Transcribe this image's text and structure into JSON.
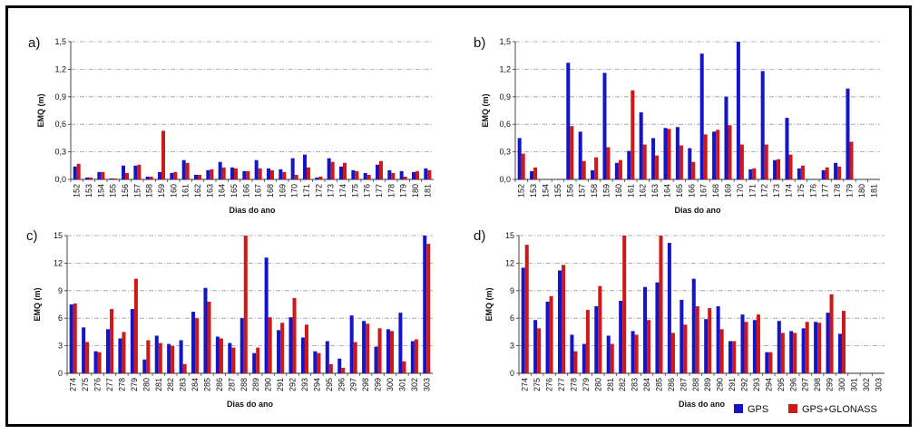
{
  "colors": {
    "gps": "#1414c8",
    "glonass": "#d01818"
  },
  "legend": {
    "gps": "GPS",
    "gps_glonass": "GPS+GLONASS"
  },
  "chart_data": [
    {
      "type": "bar",
      "panel_label": "a)",
      "xlabel": "Dias do ano",
      "ylabel": "EMQ (m)",
      "ylim": [
        0,
        1.5
      ],
      "yticks": [
        "0,0",
        "0,3",
        "0,6",
        "0,9",
        "1,2",
        "1,5"
      ],
      "grid": true,
      "categories": [
        "152",
        "153",
        "154",
        "155",
        "156",
        "157",
        "158",
        "159",
        "160",
        "161",
        "162",
        "163",
        "164",
        "165",
        "166",
        "167",
        "168",
        "169",
        "170",
        "171",
        "172",
        "173",
        "174",
        "175",
        "176",
        "177",
        "178",
        "179",
        "180",
        "181"
      ],
      "series": [
        {
          "name": "GPS",
          "values": [
            0.14,
            0.02,
            0.08,
            0.01,
            0.15,
            0.15,
            0.03,
            0.08,
            0.07,
            0.21,
            0.05,
            0.1,
            0.19,
            0.13,
            0.09,
            0.21,
            0.12,
            0.11,
            0.23,
            0.27,
            0.02,
            0.23,
            0.14,
            0.1,
            0.07,
            0.16,
            0.1,
            0.09,
            0.08,
            0.12
          ]
        },
        {
          "name": "GPS+GLONASS",
          "values": [
            0.17,
            0.02,
            0.08,
            0.01,
            0.07,
            0.16,
            0.03,
            0.53,
            0.08,
            0.18,
            0.05,
            0.11,
            0.13,
            0.12,
            0.09,
            0.12,
            0.1,
            0.08,
            0.05,
            0.13,
            0.03,
            0.19,
            0.18,
            0.09,
            0.05,
            0.2,
            0.07,
            0.03,
            0.09,
            0.1
          ]
        }
      ]
    },
    {
      "type": "bar",
      "panel_label": "b)",
      "xlabel": "Dias do ano",
      "ylabel": "EMQ (m)",
      "ylim": [
        0,
        1.5
      ],
      "yticks": [
        "0,0",
        "0,3",
        "0,6",
        "0,9",
        "1,2",
        "1,5"
      ],
      "grid": true,
      "categories": [
        "152",
        "153",
        "154",
        "155",
        "156",
        "157",
        "158",
        "159",
        "160",
        "161",
        "162",
        "163",
        "164",
        "165",
        "166",
        "167",
        "168",
        "169",
        "170",
        "171",
        "172",
        "173",
        "174",
        "175",
        "176",
        "177",
        "178",
        "179",
        "180",
        "181"
      ],
      "series": [
        {
          "name": "GPS",
          "values": [
            0.45,
            0.09,
            0,
            0,
            1.27,
            0.52,
            0.1,
            1.16,
            0.18,
            0.31,
            0.73,
            0.45,
            0.56,
            0.57,
            0.34,
            1.37,
            0.52,
            0.9,
            1.5,
            0.11,
            1.18,
            0.21,
            0.67,
            0.12,
            0,
            0.1,
            0.18,
            0.99,
            0,
            0
          ]
        },
        {
          "name": "GPS+GLONASS",
          "values": [
            0.28,
            0.13,
            0,
            0,
            0.58,
            0.2,
            0.24,
            0.35,
            0.21,
            0.97,
            0.38,
            0.26,
            0.55,
            0.37,
            0.19,
            0.49,
            0.54,
            0.59,
            0.38,
            0.12,
            0.38,
            0.22,
            0.27,
            0.15,
            0,
            0.13,
            0.14,
            0.41,
            0,
            0
          ]
        }
      ]
    },
    {
      "type": "bar",
      "panel_label": "c)",
      "xlabel": "Dias do ano",
      "ylabel": "EMQ (m)",
      "ylim": [
        0,
        15
      ],
      "yticks": [
        "0",
        "3",
        "6",
        "9",
        "12",
        "15"
      ],
      "grid": true,
      "categories": [
        "274",
        "275",
        "276",
        "277",
        "278",
        "279",
        "280",
        "281",
        "282",
        "283",
        "284",
        "285",
        "286",
        "287",
        "288",
        "289",
        "290",
        "291",
        "292",
        "293",
        "294",
        "295",
        "296",
        "297",
        "298",
        "299",
        "300",
        "301",
        "302",
        "303"
      ],
      "series": [
        {
          "name": "GPS",
          "values": [
            7.5,
            5.0,
            2.4,
            4.8,
            3.8,
            7.0,
            1.5,
            4.1,
            3.2,
            3.6,
            6.7,
            9.3,
            4.0,
            3.3,
            6.0,
            2.2,
            12.6,
            4.7,
            6.1,
            3.9,
            2.4,
            3.5,
            1.6,
            6.3,
            5.7,
            2.9,
            4.8,
            6.6,
            3.5,
            15.0
          ]
        },
        {
          "name": "GPS+GLONASS",
          "values": [
            7.6,
            3.4,
            2.3,
            7.0,
            4.5,
            10.3,
            3.6,
            3.3,
            3.0,
            1.0,
            6.0,
            7.8,
            3.8,
            2.8,
            15.0,
            2.8,
            6.1,
            5.5,
            8.2,
            5.3,
            2.2,
            1.0,
            0.6,
            3.4,
            5.4,
            4.9,
            4.6,
            1.3,
            3.7,
            14.1
          ]
        }
      ]
    },
    {
      "type": "bar",
      "panel_label": "d)",
      "xlabel": "Dias do ano",
      "ylabel": "EMQ (m)",
      "ylim": [
        0,
        15
      ],
      "yticks": [
        "0",
        "3",
        "6",
        "9",
        "12",
        "15"
      ],
      "grid": true,
      "legend_position": "bottom-right",
      "categories": [
        "274",
        "275",
        "276",
        "277",
        "278",
        "279",
        "280",
        "281",
        "282",
        "283",
        "284",
        "285",
        "286",
        "287",
        "288",
        "289",
        "290",
        "291",
        "292",
        "293",
        "294",
        "295",
        "296",
        "297",
        "298",
        "299",
        "300",
        "301",
        "302",
        "303"
      ],
      "series": [
        {
          "name": "GPS",
          "values": [
            11.5,
            5.8,
            7.8,
            11.2,
            4.2,
            3.2,
            7.3,
            4.1,
            7.9,
            4.6,
            9.4,
            9.9,
            14.2,
            8.0,
            10.3,
            5.9,
            7.3,
            3.5,
            6.4,
            5.8,
            2.3,
            5.7,
            4.6,
            4.9,
            5.6,
            6.6,
            4.3,
            0,
            0,
            0
          ]
        },
        {
          "name": "GPS+GLONASS",
          "values": [
            14.0,
            4.9,
            8.4,
            11.8,
            2.4,
            6.9,
            9.5,
            3.2,
            15.0,
            4.2,
            5.8,
            15.0,
            4.4,
            5.3,
            7.3,
            7.1,
            4.8,
            3.5,
            5.6,
            6.4,
            2.3,
            4.4,
            4.4,
            5.6,
            5.5,
            8.6,
            6.8,
            0,
            0,
            0
          ]
        }
      ]
    }
  ]
}
